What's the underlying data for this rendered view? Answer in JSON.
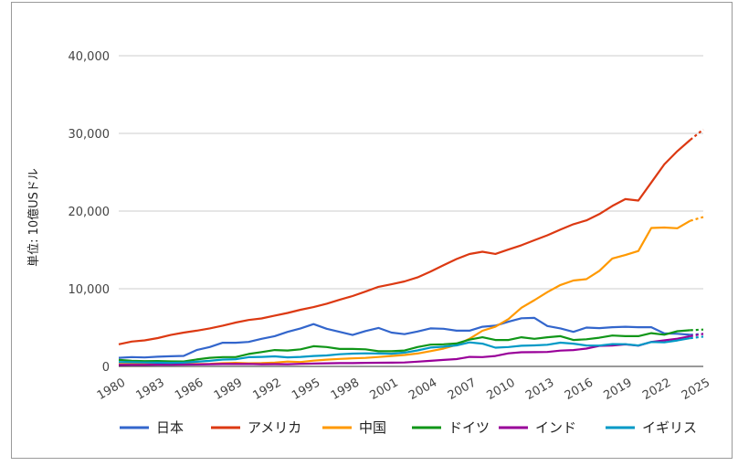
{
  "chart_data": {
    "type": "line",
    "title": "",
    "xlabel": "",
    "ylabel": "単位: 10億USドル",
    "ylim": [
      0,
      40000
    ],
    "yticks": [
      "0",
      "10,000",
      "20,000",
      "30,000",
      "40,000"
    ],
    "xticks": [
      "1980",
      "1983",
      "1986",
      "1989",
      "1992",
      "1995",
      "1998",
      "2001",
      "2004",
      "2007",
      "2010",
      "2013",
      "2016",
      "2019",
      "2022",
      "2025"
    ],
    "grid": true,
    "legend_position": "bottom",
    "x": [
      1980,
      1981,
      1982,
      1983,
      1984,
      1985,
      1986,
      1987,
      1988,
      1989,
      1990,
      1991,
      1992,
      1993,
      1994,
      1995,
      1996,
      1997,
      1998,
      1999,
      2000,
      2001,
      2002,
      2003,
      2004,
      2005,
      2006,
      2007,
      2008,
      2009,
      2010,
      2011,
      2012,
      2013,
      2014,
      2015,
      2016,
      2017,
      2018,
      2019,
      2020,
      2021,
      2022,
      2023,
      2024,
      2025
    ],
    "projected_from": 2024,
    "series": [
      {
        "name": "日本",
        "color": "#3366cc",
        "values": [
          1100,
          1200,
          1150,
          1250,
          1300,
          1350,
          2100,
          2500,
          3050,
          3050,
          3150,
          3550,
          3900,
          4450,
          4900,
          5450,
          4850,
          4450,
          4050,
          4550,
          4950,
          4350,
          4150,
          4500,
          4900,
          4850,
          4600,
          4600,
          5100,
          5250,
          5750,
          6200,
          6250,
          5200,
          4900,
          4450,
          5000,
          4930,
          5050,
          5100,
          5050,
          5050,
          4250,
          4200,
          4070,
          4190
        ]
      },
      {
        "name": "アメリカ",
        "color": "#dc3912",
        "values": [
          2850,
          3200,
          3350,
          3650,
          4050,
          4350,
          4600,
          4900,
          5250,
          5650,
          5980,
          6180,
          6540,
          6880,
          7290,
          7640,
          8070,
          8580,
          9060,
          9630,
          10250,
          10580,
          10940,
          11460,
          12210,
          13040,
          13820,
          14470,
          14770,
          14480,
          15050,
          15600,
          16250,
          16880,
          17610,
          18300,
          18800,
          19610,
          20660,
          21540,
          21350,
          23680,
          26010,
          27720,
          29180,
          30510
        ]
      },
      {
        "name": "中国",
        "color": "#ff9900",
        "values": [
          300,
          290,
          280,
          300,
          310,
          310,
          300,
          330,
          410,
          460,
          400,
          420,
          500,
          620,
          570,
          740,
          870,
          970,
          1030,
          1090,
          1210,
          1340,
          1470,
          1660,
          1960,
          2290,
          2760,
          3550,
          4590,
          5100,
          6090,
          7550,
          8530,
          9570,
          10480,
          11060,
          11230,
          12310,
          13890,
          14340,
          14860,
          17820,
          17880,
          17790,
          18750,
          19230
        ]
      },
      {
        "name": "ドイツ",
        "color": "#109618",
        "values": [
          850,
          720,
          680,
          690,
          650,
          640,
          900,
          1100,
          1200,
          1200,
          1600,
          1850,
          2100,
          2050,
          2200,
          2600,
          2500,
          2250,
          2250,
          2200,
          1950,
          1950,
          2050,
          2500,
          2800,
          2850,
          2950,
          3450,
          3750,
          3400,
          3400,
          3750,
          3550,
          3750,
          3900,
          3400,
          3500,
          3700,
          3980,
          3900,
          3890,
          4280,
          4080,
          4530,
          4660,
          4740
        ]
      },
      {
        "name": "インド",
        "color": "#990099",
        "values": [
          190,
          200,
          200,
          220,
          210,
          230,
          250,
          280,
          300,
          300,
          320,
          280,
          290,
          280,
          330,
          370,
          400,
          420,
          420,
          460,
          470,
          480,
          510,
          610,
          720,
          830,
          940,
          1220,
          1200,
          1340,
          1680,
          1820,
          1830,
          1860,
          2040,
          2100,
          2290,
          2650,
          2700,
          2840,
          2670,
          3150,
          3350,
          3570,
          3890,
          4190
        ]
      },
      {
        "name": "イギリス",
        "color": "#0099c6",
        "values": [
          560,
          540,
          510,
          480,
          460,
          490,
          600,
          720,
          880,
          920,
          1190,
          1220,
          1290,
          1160,
          1220,
          1340,
          1410,
          1560,
          1650,
          1680,
          1660,
          1640,
          1780,
          2060,
          2420,
          2540,
          2710,
          3090,
          2930,
          2410,
          2490,
          2660,
          2710,
          2790,
          3060,
          2930,
          2700,
          2680,
          2870,
          2860,
          2700,
          3140,
          3090,
          3340,
          3640,
          3840
        ]
      }
    ]
  }
}
